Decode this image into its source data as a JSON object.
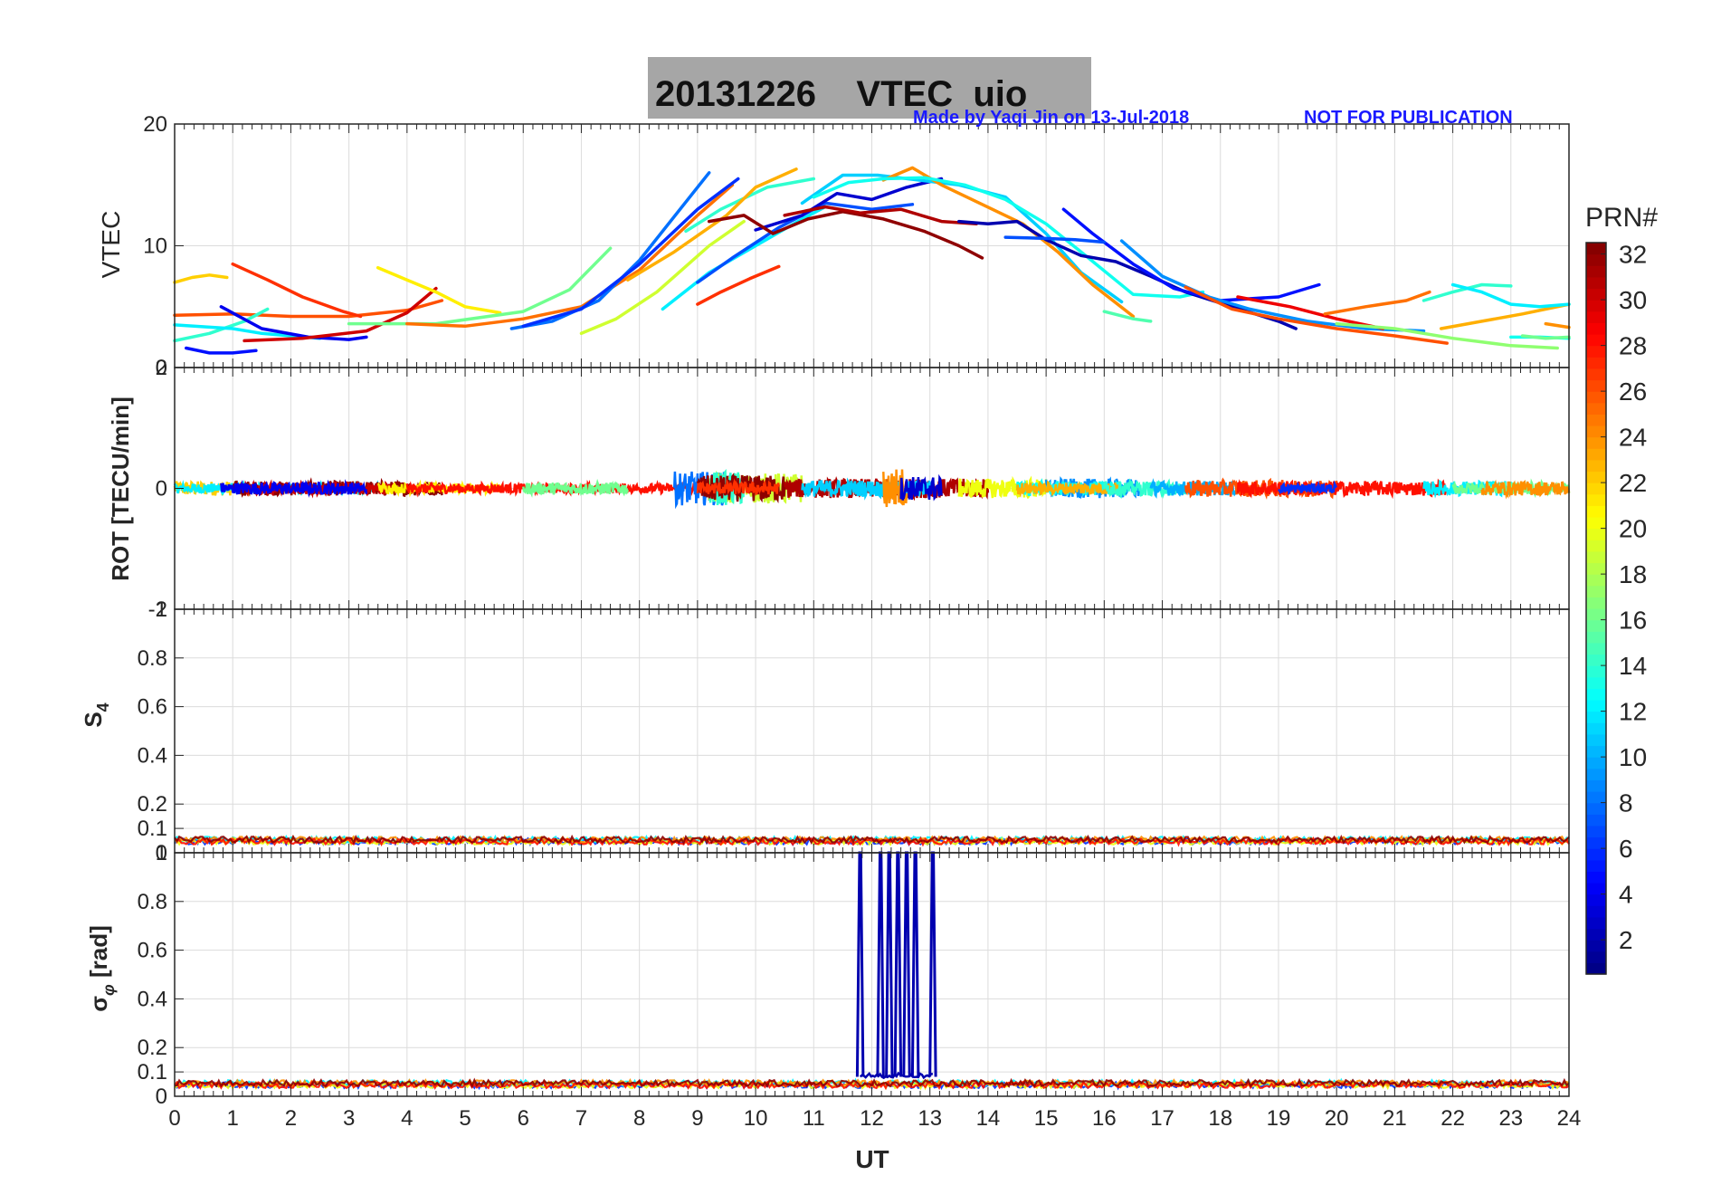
{
  "figure": {
    "title": "20131226    VTEC  uio",
    "credit": "Made by Yaqi Jin on 13-Jul-2018",
    "notice": "NOT FOR PUBLICATION",
    "x_label": "UT",
    "colorbar_label": "PRN#"
  },
  "chart_data": [
    {
      "type": "line",
      "id": "vtec",
      "ylabel": "VTEC",
      "xlim": [
        0,
        24
      ],
      "ylim": [
        0,
        20
      ],
      "yticks": [
        0,
        10,
        20
      ],
      "grid": true,
      "series": [
        {
          "prn": 22,
          "x": [
            0,
            0.3,
            0.6,
            0.9
          ],
          "y": [
            7,
            7.4,
            7.6,
            7.4
          ]
        },
        {
          "prn": 26,
          "x": [
            0,
            1,
            2,
            3,
            4,
            4.6
          ],
          "y": [
            4.3,
            4.4,
            4.2,
            4.2,
            4.7,
            5.5
          ]
        },
        {
          "prn": 14,
          "x": [
            0,
            0.6,
            1.2,
            1.6
          ],
          "y": [
            2.2,
            2.8,
            3.8,
            4.8
          ]
        },
        {
          "prn": 12,
          "x": [
            0,
            1,
            1.5,
            2.5
          ],
          "y": [
            3.5,
            3.2,
            2.8,
            2.4
          ]
        },
        {
          "prn": 5,
          "x": [
            0.2,
            0.6,
            1.0,
            1.4
          ],
          "y": [
            1.6,
            1.2,
            1.2,
            1.4
          ]
        },
        {
          "prn": 27,
          "x": [
            1.0,
            1.6,
            2.2,
            2.9,
            3.2
          ],
          "y": [
            8.5,
            7.2,
            5.8,
            4.6,
            4.2
          ]
        },
        {
          "prn": 4,
          "x": [
            0.8,
            1.5,
            2.3,
            3.0,
            3.3
          ],
          "y": [
            5,
            3.2,
            2.5,
            2.3,
            2.5
          ]
        },
        {
          "prn": 30,
          "x": [
            1.2,
            2.2,
            3.3,
            4.0,
            4.5
          ],
          "y": [
            2.2,
            2.4,
            3.0,
            4.5,
            6.5
          ]
        },
        {
          "prn": 21,
          "x": [
            3.5,
            4.0,
            4.5,
            5.0,
            5.6
          ],
          "y": [
            8.2,
            7.2,
            6.2,
            5.0,
            4.5
          ]
        },
        {
          "prn": 16,
          "x": [
            3.0,
            4.5,
            6.0,
            6.8,
            7.5
          ],
          "y": [
            3.6,
            3.6,
            4.6,
            6.4,
            9.8
          ]
        },
        {
          "prn": 25,
          "x": [
            4.0,
            5.0,
            6.0,
            7.0,
            8.0,
            9.0,
            9.6
          ],
          "y": [
            3.6,
            3.4,
            4.0,
            5.0,
            8.0,
            12.5,
            15.0
          ]
        },
        {
          "prn": 8,
          "x": [
            5.8,
            6.5,
            7.3,
            8.0,
            9.2
          ],
          "y": [
            3.2,
            3.8,
            5.5,
            8.8,
            16.0
          ]
        },
        {
          "prn": 6,
          "x": [
            6.0,
            7.0,
            8.0,
            9.0,
            9.7
          ],
          "y": [
            3.4,
            4.8,
            8.5,
            13.0,
            15.5
          ]
        },
        {
          "prn": 19,
          "x": [
            7.0,
            7.6,
            8.3,
            9.2,
            9.8
          ],
          "y": [
            2.8,
            4.0,
            6.2,
            10.0,
            12.0
          ]
        },
        {
          "prn": 14,
          "x": [
            8.8,
            9.4,
            10.2,
            11.0
          ],
          "y": [
            11.2,
            13.0,
            14.8,
            15.5
          ]
        },
        {
          "prn": 23,
          "x": [
            7.8,
            8.6,
            9.5,
            10.0,
            10.7
          ],
          "y": [
            7.2,
            9.5,
            12.5,
            14.8,
            16.3
          ]
        },
        {
          "prn": 27,
          "x": [
            9.0,
            9.4,
            9.9,
            10.4
          ],
          "y": [
            5.2,
            6.2,
            7.3,
            8.3
          ]
        },
        {
          "prn": 12,
          "x": [
            8.4,
            9.2,
            10.0,
            10.8,
            11.2
          ],
          "y": [
            4.8,
            7.8,
            10.0,
            12.2,
            13.2
          ]
        },
        {
          "prn": 7,
          "x": [
            9.0,
            9.6,
            10.4,
            11.2,
            12.0,
            12.7
          ],
          "y": [
            7.0,
            9.0,
            11.5,
            13.5,
            13.0,
            13.4
          ]
        },
        {
          "prn": 3,
          "x": [
            10.0,
            10.8,
            11.4,
            12.0,
            12.6,
            13.2
          ],
          "y": [
            11.3,
            12.5,
            14.3,
            13.8,
            14.8,
            15.5
          ]
        },
        {
          "prn": 32,
          "x": [
            9.2,
            9.8,
            10.3,
            10.9,
            11.5,
            12.2,
            12.9,
            13.5,
            13.9
          ],
          "y": [
            12.0,
            12.5,
            11.0,
            12.2,
            12.8,
            12.2,
            11.2,
            10.0,
            9.0
          ]
        },
        {
          "prn": 31,
          "x": [
            10.5,
            11.2,
            11.8,
            12.5,
            13.2,
            13.8
          ],
          "y": [
            12.5,
            13.2,
            12.7,
            13.0,
            12.0,
            11.8
          ]
        },
        {
          "prn": 11,
          "x": [
            10.8,
            11.5,
            12.1,
            12.8,
            13.5,
            14.3,
            15.0,
            15.6,
            16.3
          ],
          "y": [
            13.5,
            15.8,
            15.8,
            15.4,
            15.0,
            14.0,
            11.0,
            7.8,
            5.4
          ]
        },
        {
          "prn": 24,
          "x": [
            12.2,
            12.7,
            13.2,
            13.9,
            14.6,
            15.2,
            15.8,
            16.5
          ],
          "y": [
            15.4,
            16.4,
            15.0,
            13.4,
            11.8,
            9.5,
            6.8,
            4.2
          ]
        },
        {
          "prn": 13,
          "x": [
            11.0,
            11.6,
            12.2,
            12.9,
            13.6,
            14.3,
            15.0,
            15.6,
            16.5,
            17.3,
            17.7
          ],
          "y": [
            14.0,
            15.2,
            15.5,
            15.6,
            15.0,
            13.8,
            11.8,
            9.5,
            6.0,
            5.8,
            6.2
          ]
        },
        {
          "prn": 2,
          "x": [
            13.5,
            14.0,
            14.5,
            15.0,
            15.6,
            16.2,
            16.8,
            17.4,
            18.2,
            19.0,
            19.3
          ],
          "y": [
            12.0,
            11.8,
            12.0,
            10.5,
            9.2,
            8.7,
            7.5,
            6.2,
            5.0,
            3.8,
            3.2
          ]
        },
        {
          "prn": 5,
          "x": [
            15.3,
            15.8,
            16.5,
            17.2,
            18.0,
            19.0,
            19.7
          ],
          "y": [
            13.0,
            11.0,
            8.5,
            6.5,
            5.5,
            5.8,
            6.8
          ]
        },
        {
          "prn": 7,
          "x": [
            14.3,
            15.0,
            15.5,
            16.0
          ],
          "y": [
            10.7,
            10.6,
            10.5,
            10.3
          ]
        },
        {
          "prn": 9,
          "x": [
            16.3,
            17.0,
            17.8,
            18.5,
            19.5,
            20.5,
            21.5
          ],
          "y": [
            10.4,
            7.5,
            5.8,
            4.8,
            3.8,
            3.2,
            3.0
          ]
        },
        {
          "prn": 15,
          "x": [
            16.0,
            16.5,
            16.8
          ],
          "y": [
            4.6,
            4.0,
            3.8
          ]
        },
        {
          "prn": 26,
          "x": [
            17.4,
            18.2,
            19.0,
            20.0,
            21.0,
            21.9
          ],
          "y": [
            6.6,
            4.8,
            4.0,
            3.2,
            2.6,
            2.0
          ]
        },
        {
          "prn": 29,
          "x": [
            18.3,
            19.2,
            20.0,
            20.8
          ],
          "y": [
            5.8,
            5.0,
            4.0,
            3.2
          ]
        },
        {
          "prn": 17,
          "x": [
            20.0,
            21.0,
            22.0,
            23.0,
            23.8
          ],
          "y": [
            3.6,
            3.2,
            2.4,
            1.8,
            1.6
          ]
        },
        {
          "prn": 25,
          "x": [
            19.8,
            20.5,
            21.2,
            21.6
          ],
          "y": [
            4.4,
            5.0,
            5.5,
            6.2
          ]
        },
        {
          "prn": 23,
          "x": [
            21.8,
            22.5,
            23.2,
            24.0
          ],
          "y": [
            3.2,
            3.8,
            4.4,
            5.2
          ]
        },
        {
          "prn": 24,
          "x": [
            23.6,
            24.0
          ],
          "y": [
            3.6,
            3.3
          ]
        },
        {
          "prn": 14,
          "x": [
            21.5,
            22.0,
            22.5,
            23.0
          ],
          "y": [
            5.5,
            6.2,
            6.8,
            6.7
          ]
        },
        {
          "prn": 12,
          "x": [
            22.0,
            22.5,
            23.0,
            23.5,
            24.0
          ],
          "y": [
            6.8,
            6.2,
            5.2,
            5.0,
            5.2
          ]
        },
        {
          "prn": 13,
          "x": [
            23.0,
            23.5,
            24.0
          ],
          "y": [
            2.5,
            2.5,
            2.4
          ]
        },
        {
          "prn": 16,
          "x": [
            23.2,
            23.6,
            24.0
          ],
          "y": [
            2.6,
            2.4,
            2.5
          ]
        }
      ]
    },
    {
      "type": "line",
      "id": "rot",
      "ylabel": "ROT [TECU/min]",
      "xlim": [
        0,
        24
      ],
      "ylim": [
        -2,
        2
      ],
      "yticks": [
        -2,
        0,
        2
      ],
      "grid": true,
      "noise_segments": [
        {
          "prn": 22,
          "x0": 0,
          "x1": 1.3,
          "amp": 0.12
        },
        {
          "prn": 12,
          "x0": 0,
          "x1": 3.5,
          "amp": 0.08
        },
        {
          "prn": 32,
          "x0": 1.0,
          "x1": 4.6,
          "amp": 0.12
        },
        {
          "prn": 30,
          "x0": 1.2,
          "x1": 3.8,
          "amp": 0.1
        },
        {
          "prn": 4,
          "x0": 0.8,
          "x1": 3.3,
          "amp": 0.1
        },
        {
          "prn": 21,
          "x0": 3.5,
          "x1": 5.6,
          "amp": 0.08
        },
        {
          "prn": 28,
          "x0": 4.0,
          "x1": 9.6,
          "amp": 0.08
        },
        {
          "prn": 16,
          "x0": 6.0,
          "x1": 7.8,
          "amp": 0.1
        },
        {
          "prn": 8,
          "x0": 8.6,
          "x1": 9.6,
          "amp": 0.28
        },
        {
          "prn": 19,
          "x0": 9.2,
          "x1": 10.8,
          "amp": 0.25
        },
        {
          "prn": 14,
          "x0": 9.2,
          "x1": 9.8,
          "amp": 0.28
        },
        {
          "prn": 32,
          "x0": 9.0,
          "x1": 10.5,
          "amp": 0.22
        },
        {
          "prn": 27,
          "x0": 9.0,
          "x1": 10.4,
          "amp": 0.1
        },
        {
          "prn": 31,
          "x0": 10.5,
          "x1": 14.0,
          "amp": 0.16
        },
        {
          "prn": 11,
          "x0": 10.8,
          "x1": 13.0,
          "amp": 0.14
        },
        {
          "prn": 24,
          "x0": 12.2,
          "x1": 12.6,
          "amp": 0.35
        },
        {
          "prn": 3,
          "x0": 12.5,
          "x1": 13.2,
          "amp": 0.2
        },
        {
          "prn": 20,
          "x0": 13.5,
          "x1": 15.0,
          "amp": 0.16
        },
        {
          "prn": 9,
          "x0": 15.0,
          "x1": 16.6,
          "amp": 0.16
        },
        {
          "prn": 13,
          "x0": 14.5,
          "x1": 16.3,
          "amp": 0.12
        },
        {
          "prn": 23,
          "x0": 14.5,
          "x1": 16.3,
          "amp": 0.1
        },
        {
          "prn": 14,
          "x0": 16.0,
          "x1": 17.4,
          "amp": 0.12
        },
        {
          "prn": 10,
          "x0": 16.8,
          "x1": 18.3,
          "amp": 0.12
        },
        {
          "prn": 26,
          "x0": 17.4,
          "x1": 20.0,
          "amp": 0.14
        },
        {
          "prn": 28,
          "x0": 18.3,
          "x1": 21.9,
          "amp": 0.12
        },
        {
          "prn": 6,
          "x0": 19.0,
          "x1": 20.0,
          "amp": 0.08
        },
        {
          "prn": 12,
          "x0": 21.5,
          "x1": 23.0,
          "amp": 0.12
        },
        {
          "prn": 16,
          "x0": 22.0,
          "x1": 24.0,
          "amp": 0.1
        },
        {
          "prn": 24,
          "x0": 22.5,
          "x1": 24.0,
          "amp": 0.12
        }
      ]
    },
    {
      "type": "line",
      "id": "s4",
      "ylabel": "S4",
      "xlim": [
        0,
        24
      ],
      "ylim": [
        0,
        1
      ],
      "yticks": [
        0,
        0.1,
        0.2,
        0.4,
        0.6,
        0.8,
        1
      ],
      "grid": true,
      "baseline": 0.05,
      "noise_amp": 0.012
    },
    {
      "type": "line",
      "id": "sigma_phi",
      "ylabel": "σ_φ [rad]",
      "xlim": [
        0,
        24
      ],
      "ylim": [
        0,
        1
      ],
      "yticks": [
        0,
        0.1,
        0.2,
        0.4,
        0.6,
        0.8,
        1
      ],
      "grid": true,
      "baseline": 0.05,
      "noise_amp": 0.012,
      "spikes": {
        "prn": 2,
        "x": [
          11.8,
          12.15,
          12.3,
          12.45,
          12.6,
          12.75,
          13.05
        ],
        "y": 1
      }
    }
  ],
  "colorbar": {
    "colormap": "jet",
    "range": [
      1,
      32
    ],
    "ticks": [
      2,
      4,
      6,
      8,
      10,
      12,
      14,
      16,
      18,
      20,
      22,
      24,
      26,
      28,
      30,
      32
    ]
  },
  "colors": {
    "title_bg": "#a6a6a6",
    "annotation": "#1a1aff",
    "grid": "#dcdcdc"
  }
}
